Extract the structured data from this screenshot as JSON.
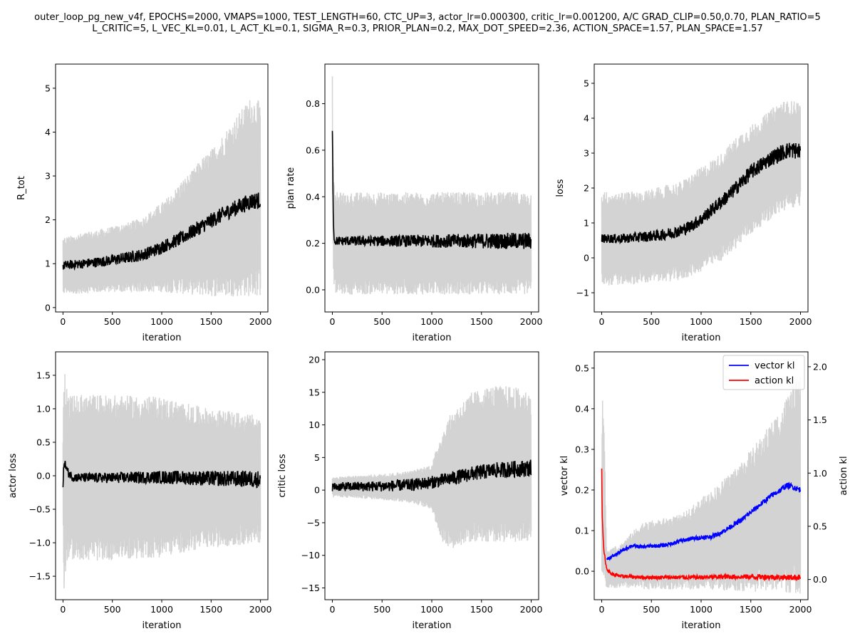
{
  "figure": {
    "title": "outer_loop_pg_new_v4f, EPOCHS=2000, VMAPS=1000, TEST_LENGTH=60, CTC_UP=3, actor_lr=0.000300, critic_lr=0.001200, A/C GRAD_CLIP=0.50,0.70, PLAN_RATIO=5\nL_CRITIC=5, L_VEC_KL=0.01, L_ACT_KL=0.1, SIGMA_R=0.3, PRIOR_PLAN=0.2, MAX_DOT_SPEED=2.36, ACTION_SPACE=1.57, PLAN_SPACE=1.57"
  },
  "colors": {
    "band": "#d3d3d3",
    "mean": "#000000",
    "vector_kl": "#0000ff",
    "action_kl": "#ff0000"
  },
  "chart_data": [
    {
      "id": "r-tot",
      "type": "line",
      "xlabel": "iteration",
      "ylabel": "R_tot",
      "xlim": [
        -75,
        2075
      ],
      "ylim": [
        -0.1,
        5.55
      ],
      "xticks": [
        0,
        500,
        1000,
        1500,
        2000
      ],
      "yticks": [
        0,
        1,
        2,
        3,
        4,
        5
      ],
      "series": [
        {
          "role": "mean",
          "x": [
            0,
            50,
            200,
            400,
            600,
            800,
            900,
            1000,
            1100,
            1200,
            1300,
            1400,
            1500,
            1600,
            1700,
            1800,
            1900,
            2000
          ],
          "y": [
            0.95,
            0.97,
            1.0,
            1.05,
            1.12,
            1.2,
            1.28,
            1.38,
            1.48,
            1.58,
            1.72,
            1.85,
            1.98,
            2.1,
            2.22,
            2.32,
            2.42,
            2.45
          ]
        },
        {
          "role": "band-upper",
          "x": [
            0,
            200,
            400,
            600,
            800,
            1000,
            1100,
            1200,
            1300,
            1400,
            1500,
            1600,
            1700,
            1800,
            1900,
            2000
          ],
          "y": [
            1.6,
            1.7,
            1.8,
            1.9,
            2.05,
            2.4,
            2.6,
            2.9,
            3.1,
            3.4,
            3.6,
            3.9,
            4.2,
            4.5,
            4.8,
            4.7
          ]
        },
        {
          "role": "band-lower",
          "x": [
            0,
            500,
            1000,
            1500,
            2000
          ],
          "y": [
            0.3,
            0.35,
            0.35,
            0.25,
            0.25
          ]
        }
      ]
    },
    {
      "id": "plan-rate",
      "type": "line",
      "xlabel": "iteration",
      "ylabel": "plan rate",
      "xlim": [
        -75,
        2075
      ],
      "ylim": [
        -0.095,
        0.97
      ],
      "xticks": [
        0,
        500,
        1000,
        1500,
        2000
      ],
      "yticks": [
        0.0,
        0.2,
        0.4,
        0.6,
        0.8
      ],
      "series": [
        {
          "role": "mean",
          "x": [
            0,
            10,
            20,
            2000
          ],
          "y": [
            0.68,
            0.3,
            0.21,
            0.21
          ]
        },
        {
          "role": "band-upper",
          "x": [
            0,
            10,
            30,
            2000
          ],
          "y": [
            0.92,
            0.5,
            0.42,
            0.42
          ]
        },
        {
          "role": "band-lower",
          "x": [
            0,
            10,
            30,
            2000
          ],
          "y": [
            0.45,
            0.05,
            -0.02,
            -0.02
          ]
        }
      ]
    },
    {
      "id": "loss",
      "type": "line",
      "xlabel": "iteration",
      "ylabel": "loss",
      "xlim": [
        -75,
        2075
      ],
      "ylim": [
        -1.55,
        5.55
      ],
      "xticks": [
        0,
        500,
        1000,
        1500,
        2000
      ],
      "yticks": [
        -1,
        0,
        1,
        2,
        3,
        4,
        5
      ],
      "series": [
        {
          "role": "mean",
          "x": [
            0,
            200,
            400,
            600,
            800,
            900,
            1000,
            1100,
            1200,
            1300,
            1400,
            1500,
            1600,
            1700,
            1800,
            1900,
            2000
          ],
          "y": [
            0.55,
            0.55,
            0.6,
            0.65,
            0.78,
            0.92,
            1.1,
            1.35,
            1.6,
            1.85,
            2.15,
            2.45,
            2.65,
            2.85,
            3.0,
            3.1,
            3.05
          ]
        },
        {
          "role": "band-upper",
          "x": [
            0,
            400,
            800,
            1000,
            1200,
            1400,
            1600,
            1800,
            2000
          ],
          "y": [
            1.9,
            1.9,
            2.2,
            2.6,
            3.0,
            3.6,
            4.0,
            4.5,
            4.5
          ]
        },
        {
          "role": "band-lower",
          "x": [
            0,
            400,
            800,
            1000,
            1200,
            1400,
            1600,
            1800,
            2000
          ],
          "y": [
            -0.8,
            -0.75,
            -0.65,
            -0.4,
            -0.1,
            0.4,
            0.9,
            1.3,
            1.5
          ]
        }
      ]
    },
    {
      "id": "actor-loss",
      "type": "line",
      "xlabel": "iteration",
      "ylabel": "actor loss",
      "xlim": [
        -75,
        2075
      ],
      "ylim": [
        -1.85,
        1.85
      ],
      "xticks": [
        0,
        500,
        1000,
        1500,
        2000
      ],
      "yticks": [
        -1.5,
        -1.0,
        -0.5,
        0.0,
        0.5,
        1.0,
        1.5
      ],
      "series": [
        {
          "role": "mean",
          "x": [
            0,
            10,
            50,
            100,
            200,
            500,
            1000,
            1500,
            2000
          ],
          "y": [
            -0.2,
            0.22,
            0.05,
            -0.02,
            -0.03,
            -0.03,
            -0.02,
            -0.04,
            -0.05
          ]
        },
        {
          "role": "band-upper",
          "x": [
            0,
            10,
            50,
            300,
            600,
            1000,
            1200,
            1500,
            2000
          ],
          "y": [
            0.5,
            1.7,
            1.2,
            1.22,
            1.2,
            1.18,
            1.1,
            1.0,
            0.9
          ]
        },
        {
          "role": "band-lower",
          "x": [
            0,
            10,
            50,
            300,
            600,
            1000,
            1200,
            1500,
            2000
          ],
          "y": [
            -0.5,
            -1.75,
            -1.25,
            -1.28,
            -1.25,
            -1.22,
            -1.15,
            -1.08,
            -1.0
          ]
        }
      ]
    },
    {
      "id": "critic-loss",
      "type": "line",
      "xlabel": "iteration",
      "ylabel": "critic loss",
      "xlim": [
        -75,
        2075
      ],
      "ylim": [
        -16.8,
        21.2
      ],
      "xticks": [
        0,
        500,
        1000,
        1500,
        2000
      ],
      "yticks": [
        -15,
        -10,
        -5,
        0,
        5,
        10,
        15,
        20
      ],
      "series": [
        {
          "role": "mean",
          "x": [
            0,
            500,
            800,
            1000,
            1200,
            1400,
            1600,
            1800,
            2000
          ],
          "y": [
            0.5,
            0.6,
            0.8,
            1.2,
            1.8,
            2.5,
            3.0,
            3.2,
            3.4
          ]
        },
        {
          "role": "band-upper",
          "x": [
            0,
            500,
            800,
            1000,
            1100,
            1200,
            1400,
            1600,
            1800,
            2000
          ],
          "y": [
            2.0,
            2.5,
            3.0,
            4.0,
            9.0,
            12.0,
            15.0,
            16.0,
            16.0,
            15.0
          ]
        },
        {
          "role": "band-lower",
          "x": [
            0,
            500,
            800,
            1000,
            1100,
            1200,
            1400,
            1600,
            1800,
            2000
          ],
          "y": [
            -1.0,
            -1.5,
            -2.0,
            -3.0,
            -8.0,
            -9.0,
            -8.0,
            -8.0,
            -8.0,
            -8.0
          ]
        }
      ]
    },
    {
      "id": "kl",
      "type": "line",
      "xlabel": "iteration",
      "ylabel": "vector kl",
      "ylabel_right": "action kl",
      "xlim": [
        -75,
        2075
      ],
      "ylim": [
        -0.07,
        0.54
      ],
      "ylim_right": [
        -0.19,
        2.14
      ],
      "xticks": [
        0,
        500,
        1000,
        1500,
        2000
      ],
      "yticks": [
        0.0,
        0.1,
        0.2,
        0.3,
        0.4,
        0.5
      ],
      "yticks_right": [
        0.0,
        0.5,
        1.0,
        1.5,
        2.0
      ],
      "legend": {
        "loc": "upper right",
        "entries": [
          {
            "label": "vector kl",
            "color": "#0000ff"
          },
          {
            "label": "action kl",
            "color": "#ff0000"
          }
        ]
      },
      "series": [
        {
          "role": "band-upper",
          "x": [
            0,
            10,
            50,
            200,
            400,
            600,
            800,
            1000,
            1200,
            1400,
            1600,
            1800,
            1900,
            2000
          ],
          "y": [
            0.25,
            0.51,
            0.05,
            0.07,
            0.12,
            0.13,
            0.14,
            0.18,
            0.22,
            0.27,
            0.33,
            0.4,
            0.45,
            0.48
          ]
        },
        {
          "role": "band-lower",
          "x": [
            0,
            500,
            1000,
            1500,
            2000
          ],
          "y": [
            -0.04,
            -0.045,
            -0.045,
            -0.05,
            -0.055
          ]
        },
        {
          "name": "vector kl",
          "axis": "left",
          "color": "#0000ff",
          "x": [
            50,
            100,
            200,
            300,
            400,
            500,
            600,
            700,
            800,
            900,
            1000,
            1100,
            1200,
            1300,
            1400,
            1500,
            1600,
            1700,
            1800,
            1850,
            1900,
            2000
          ],
          "y": [
            0.03,
            0.035,
            0.05,
            0.063,
            0.06,
            0.062,
            0.063,
            0.068,
            0.075,
            0.08,
            0.083,
            0.085,
            0.095,
            0.11,
            0.125,
            0.145,
            0.165,
            0.185,
            0.2,
            0.21,
            0.21,
            0.2
          ]
        },
        {
          "name": "action kl",
          "axis": "right",
          "color": "#ff0000",
          "x": [
            0,
            5,
            20,
            50,
            100,
            200,
            400,
            600,
            800,
            1000,
            1200,
            1400,
            1600,
            1800,
            2000
          ],
          "y": [
            1.05,
            0.62,
            0.28,
            0.1,
            0.05,
            0.03,
            0.02,
            0.02,
            0.02,
            0.02,
            0.025,
            0.025,
            0.025,
            0.02,
            0.02
          ]
        }
      ]
    }
  ]
}
